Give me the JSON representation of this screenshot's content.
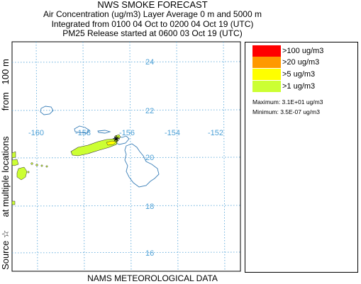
{
  "header": {
    "title": "NWS SMOKE FORECAST",
    "line2": "Air Concentration (ug/m3) Layer Average    0 m and  5000 m",
    "line3": "Integrated from 0100 04 Oct to 0200 04 Oct 19 (UTC)",
    "line4": "PM25 Release started at 0600 03 Oct 19 (UTC)"
  },
  "side_label": "Source ☆     at multiple locations          from   100 m",
  "footer": "NAMS METEOROLOGICAL DATA",
  "map": {
    "lat_labels": [
      "24",
      "22",
      "20",
      "18",
      "16"
    ],
    "lon_labels": [
      "-160",
      "-158",
      "-156",
      "-154",
      "-152"
    ],
    "grid_color": "#4a9fd6",
    "coast_color": "#3a7fb8",
    "source_marker": "star-icon"
  },
  "legend": {
    "items": [
      {
        "label": ">100 ug/m3",
        "color": "#ff0000"
      },
      {
        "label": ">20 ug/m3",
        "color": "#ff9900"
      },
      {
        "label": ">5 ug/m3",
        "color": "#ffff00"
      },
      {
        "label": ">1 ug/m3",
        "color": "#ccff33"
      }
    ],
    "maximum": "Maximum: 3.1E+01 ug/m3",
    "minimum": "Minimum: 3.5E-07 ug/m3"
  }
}
